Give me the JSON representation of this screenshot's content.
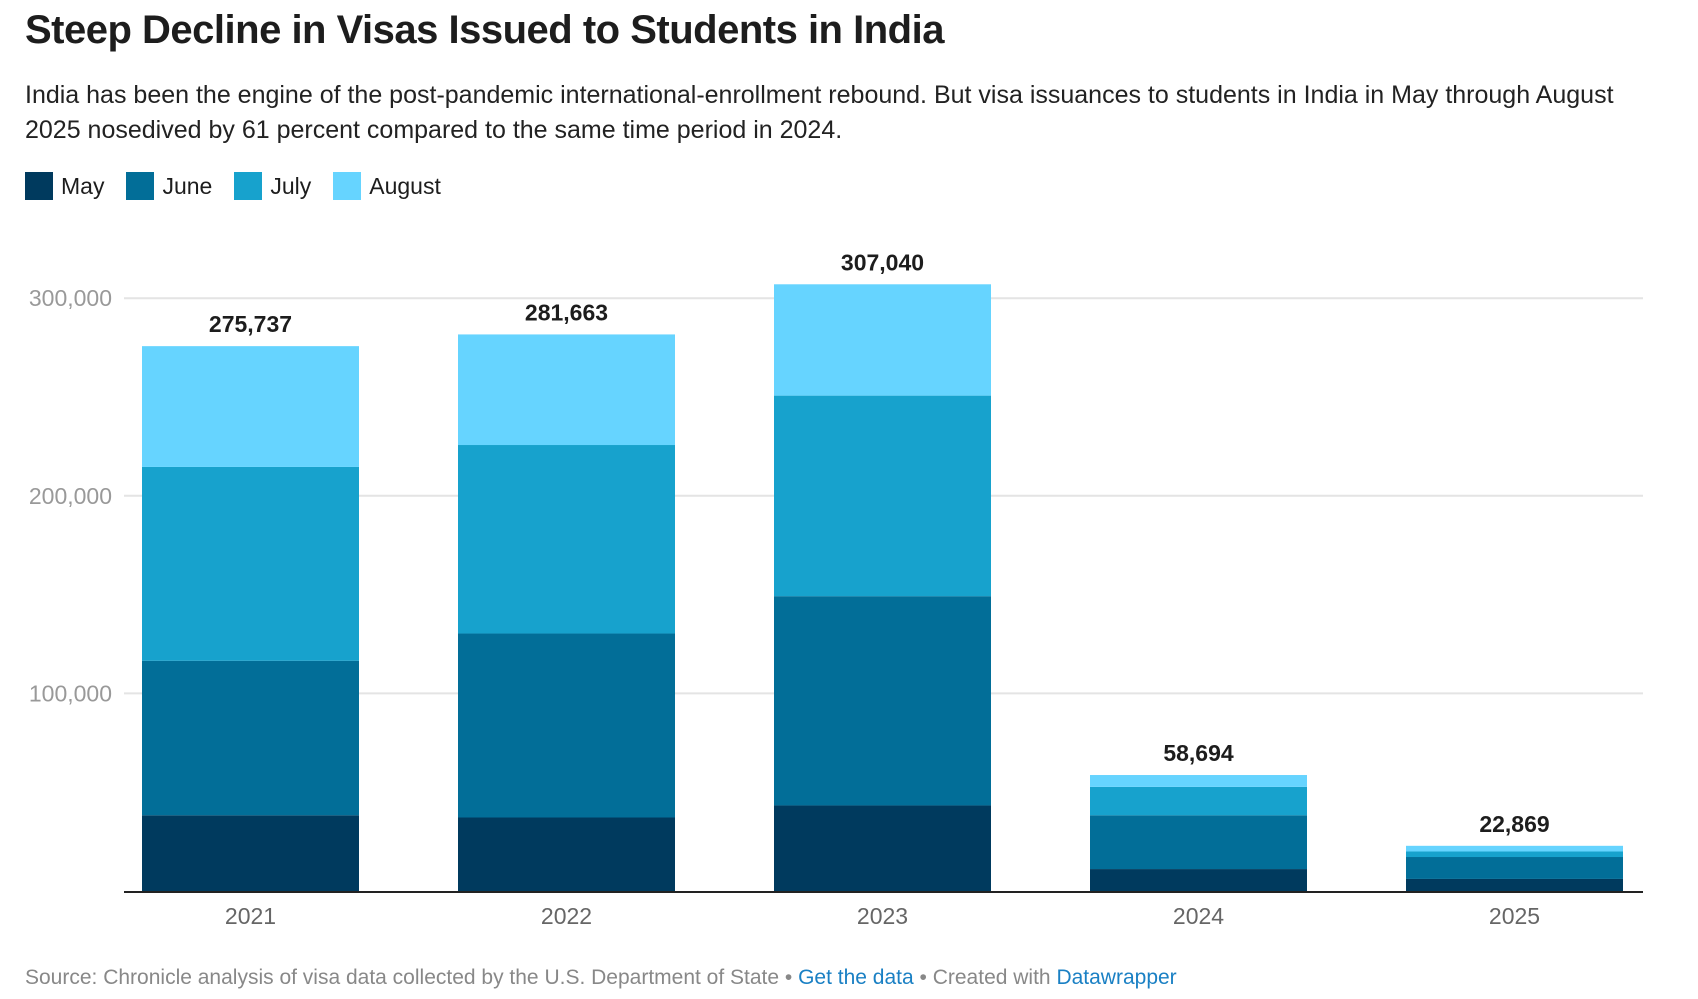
{
  "header": {
    "title": "Steep Decline in Visas Issued to Students in India",
    "subtitle": "India has been the engine of the post-pandemic international-enrollment rebound. But visa issuances to students in India in May through August 2025 nosedived by 61 percent compared to the same time period in 2024."
  },
  "footer": {
    "source": "Source: Chronicle analysis of visa data collected by the U.S. Department of State",
    "sep": " • ",
    "get_data": "Get the data",
    "created": "Created with",
    "tool": "Datawrapper"
  },
  "chart_data": {
    "type": "bar",
    "stacked": true,
    "title": "Steep Decline in Visas Issued to Students in India",
    "xlabel": "",
    "ylabel": "",
    "ylim": [
      0,
      310000
    ],
    "yticks": [
      100000,
      200000,
      300000
    ],
    "ytick_labels": [
      "100,000",
      "200,000",
      "300,000"
    ],
    "grid": true,
    "legend_position": "top-left",
    "categories": [
      "2021",
      "2022",
      "2023",
      "2024",
      "2025"
    ],
    "series": [
      {
        "name": "May",
        "color": "#003a5e",
        "values": [
          38300,
          37200,
          43300,
          11100,
          6100
        ]
      },
      {
        "name": "June",
        "color": "#026e98",
        "values": [
          78200,
          93100,
          105900,
          27200,
          11100
        ]
      },
      {
        "name": "July",
        "color": "#17a2cd",
        "values": [
          98100,
          95400,
          101500,
          14400,
          2800
        ]
      },
      {
        "name": "August",
        "color": "#66d4ff",
        "values": [
          61137,
          55963,
          56340,
          5994,
          2869
        ]
      }
    ],
    "totals": [
      275737,
      281663,
      307040,
      58694,
      22869
    ],
    "total_labels": [
      "275,737",
      "281,663",
      "307,040",
      "58,694",
      "22,869"
    ]
  }
}
